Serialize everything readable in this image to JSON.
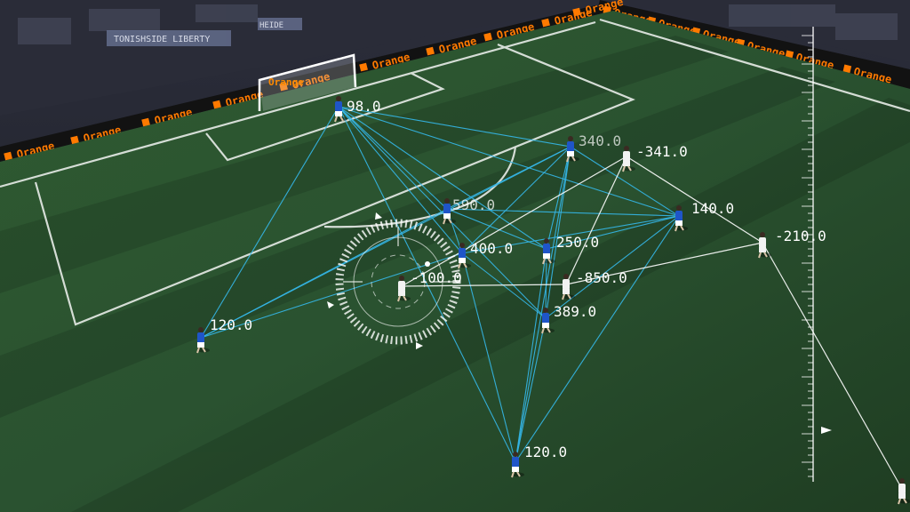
{
  "overlay": {
    "blue_color": "#35b8ea",
    "white_color": "#ffffff",
    "labels": {
      "p_98": "98.0",
      "p_340": "340.0",
      "p_neg341": "-341.0",
      "p_590": "590.0",
      "p_140": "140.0",
      "p_400": "400.0",
      "p_250": "250.0",
      "p_neg210": "-210.0",
      "p_neg100": "-100.0",
      "p_neg850": "-850.0",
      "p_389": "389.0",
      "p_120_left": "120.0",
      "p_120_bottom": "120.0"
    }
  },
  "ads": {
    "brand": "Orange"
  },
  "stands": {
    "banner_1": "TONISHSIDE LIBERTY",
    "banner_2": "HEIDE"
  }
}
